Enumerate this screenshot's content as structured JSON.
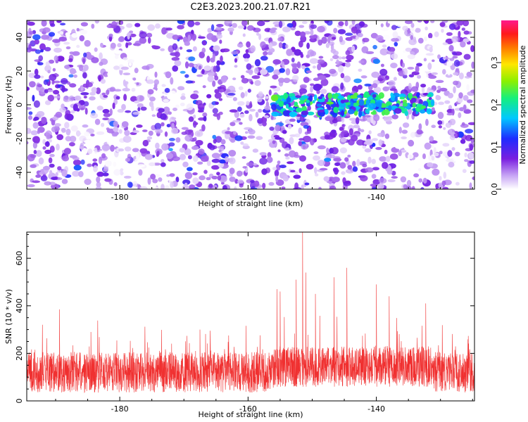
{
  "figure": {
    "title": "C2E3.2023.200.21.07.R21",
    "background": "#ffffff"
  },
  "chart_data": [
    {
      "type": "heatmap",
      "title": "",
      "xlabel": "Height of straight line (km)",
      "ylabel": "Frequency (Hz)",
      "xlim": [
        -194.5,
        -124.7
      ],
      "ylim": [
        -50,
        50
      ],
      "xticks": [
        -180,
        -160,
        -140
      ],
      "yticks": [
        -40,
        -20,
        0,
        20,
        40
      ],
      "colorbar": {
        "label": "Normalized spectral amplitude",
        "range": [
          0.0,
          0.4
        ],
        "ticks": [
          0.0,
          0.1,
          0.2,
          0.3
        ],
        "colormap": "rainbow (white → purple → blue → cyan → green → yellow → red → magenta)"
      },
      "features": [
        {
          "description": "band of elevated amplitude near 0 Hz",
          "x_range": [
            -156,
            -131
          ],
          "y_center": 0,
          "peak_value": 0.25
        }
      ],
      "background_level": 0.05,
      "grid": false
    },
    {
      "type": "line",
      "title": "",
      "xlabel": "Height of straight line (km)",
      "ylabel": "SNR (10 * v/v)",
      "xlim": [
        -194.5,
        -124.7
      ],
      "ylim": [
        0,
        710
      ],
      "xticks": [
        -180,
        -160,
        -140
      ],
      "yticks": [
        0,
        200,
        400,
        600
      ],
      "series": [
        {
          "color": "#f03030",
          "baseline_mean": 120,
          "notable_peaks": [
            {
              "x": -189.4,
              "y": 385
            },
            {
              "x": -184.5,
              "y": 290
            },
            {
              "x": -167.5,
              "y": 300
            },
            {
              "x": -155.5,
              "y": 470
            },
            {
              "x": -155.0,
              "y": 460
            },
            {
              "x": -152.5,
              "y": 510
            },
            {
              "x": -151.5,
              "y": 710
            },
            {
              "x": -151.0,
              "y": 540
            },
            {
              "x": -149.5,
              "y": 450
            },
            {
              "x": -146.6,
              "y": 520
            },
            {
              "x": -144.6,
              "y": 560
            },
            {
              "x": -140.0,
              "y": 490
            },
            {
              "x": -138.0,
              "y": 440
            },
            {
              "x": -132.3,
              "y": 410
            }
          ]
        }
      ],
      "grid": false
    }
  ]
}
